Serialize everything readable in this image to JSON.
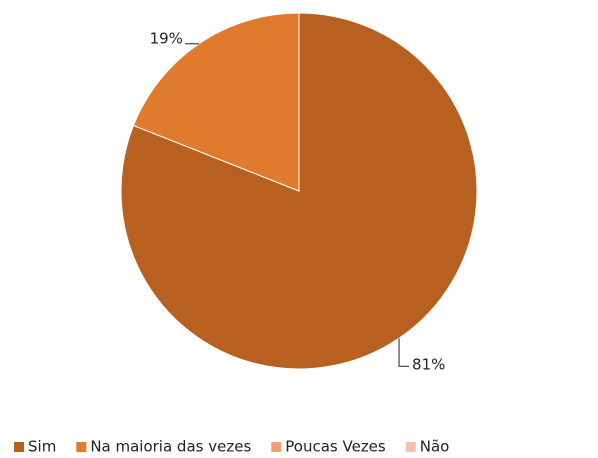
{
  "chart_data": {
    "type": "pie",
    "categories": [
      "Sim",
      "Na maioria das vezes",
      "Poucas Vezes",
      "Não"
    ],
    "values": [
      81,
      19,
      0,
      0
    ],
    "value_labels": [
      "81%",
      "19%",
      null,
      null
    ],
    "colors": [
      "#b8601f",
      "#e07a2c",
      "#f0a070",
      "#f4c2ac"
    ],
    "legend": "bottom"
  }
}
